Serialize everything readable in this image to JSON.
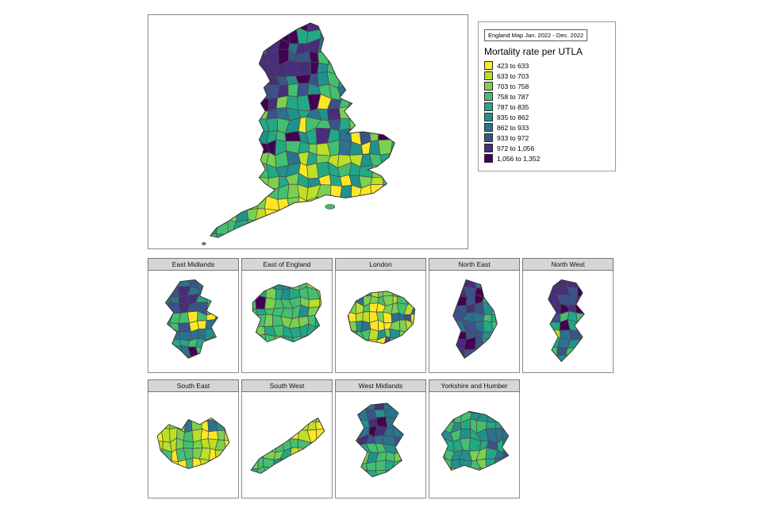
{
  "legend": {
    "title_box": "England Map Jan. 2022 - Dec. 2022",
    "heading": "Mortality rate per UTLA",
    "bins": [
      {
        "label": "423 to 633",
        "color": "#FDE725"
      },
      {
        "label": "633 to 703",
        "color": "#BDDF26"
      },
      {
        "label": "703 to 758",
        "color": "#7AD151"
      },
      {
        "label": "758 to 787",
        "color": "#44BF70"
      },
      {
        "label": "787 to 835",
        "color": "#22A884"
      },
      {
        "label": "835 to 862",
        "color": "#21918C"
      },
      {
        "label": "862 to 933",
        "color": "#2C728E"
      },
      {
        "label": "933 to 972",
        "color": "#3B528B"
      },
      {
        "label": "972 to 1,056",
        "color": "#472D7B"
      },
      {
        "label": "1,056 to 1,352",
        "color": "#440154"
      }
    ]
  },
  "panels": [
    {
      "id": "em",
      "label": "East Midlands"
    },
    {
      "id": "ee",
      "label": "East of England"
    },
    {
      "id": "ldn",
      "label": "London"
    },
    {
      "id": "ne",
      "label": "North East"
    },
    {
      "id": "nw",
      "label": "North West"
    },
    {
      "id": "se",
      "label": "South East"
    },
    {
      "id": "sw",
      "label": "South West"
    },
    {
      "id": "wm",
      "label": "West Midlands"
    },
    {
      "id": "yh",
      "label": "Yorkshire and Humber"
    }
  ],
  "chart_data": {
    "type": "heatmap",
    "subtype": "choropleth",
    "geography": "England, by Upper Tier Local Authority (UTLA)",
    "title": "England Map Jan. 2022 - Dec. 2022",
    "legend_title": "Mortality rate per UTLA",
    "legend_position": "top-right",
    "bins": [
      "423 to 633",
      "633 to 703",
      "703 to 758",
      "758 to 787",
      "787 to 835",
      "835 to 862",
      "862 to 933",
      "933 to 972",
      "972 to 1,056",
      "1,056 to 1,352"
    ],
    "bin_colors": [
      "#FDE725",
      "#BDDF26",
      "#7AD151",
      "#44BF70",
      "#22A884",
      "#21918C",
      "#2C728E",
      "#3B528B",
      "#472D7B",
      "#440154"
    ],
    "facets": [
      "East Midlands",
      "East of England",
      "London",
      "North East",
      "North West",
      "South East",
      "South West",
      "West Midlands",
      "Yorkshire and Humber"
    ]
  }
}
